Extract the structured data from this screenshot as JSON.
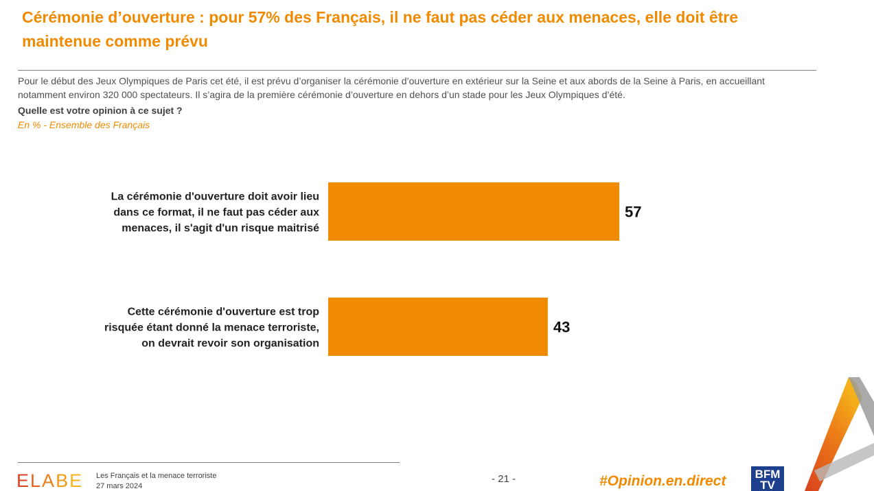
{
  "header": {
    "title": "Cérémonie d’ouverture : pour 57% des Français, il ne faut pas céder aux menaces, elle doit être maintenue comme prévu",
    "intro": "Pour le début des Jeux Olympiques de Paris cet été, il est prévu d’organiser la cérémonie d’ouverture en extérieur sur la Seine et aux abords de la Seine à Paris, en accueillant notamment environ 320 000 spectateurs. Il s’agira de la première cérémonie d’ouverture en dehors d’un stade pour les Jeux Olympiques d’été.",
    "question": "Quelle est votre opinion à ce sujet ?",
    "base": "En % - Ensemble des Français"
  },
  "chart_data": {
    "type": "bar",
    "orientation": "horizontal",
    "categories": [
      [
        "La cérémonie d'ouverture doit avoir lieu",
        "dans ce format, il ne faut pas céder aux",
        "menaces, il s'agit d'un risque maitrisé"
      ],
      [
        "Cette cérémonie d'ouverture est trop",
        "risquée étant donné la menace terroriste,",
        "on devrait revoir son organisation"
      ]
    ],
    "values": [
      57,
      43
    ],
    "value_labels": [
      "57",
      "43"
    ],
    "color": "#f08a00",
    "title": "",
    "xlabel": "",
    "ylabel": ""
  },
  "footer": {
    "logo_letters": [
      "E",
      "L",
      "A",
      "B",
      "E"
    ],
    "logo_colors": [
      "#d9411e",
      "#e35f1d",
      "#ec7d18",
      "#f29a16",
      "#f5b21a"
    ],
    "line1": "Les Français et la menace terroriste",
    "line2": "27 mars 2024",
    "page": "- 21 -",
    "hashtag": "#Opinion.en.direct",
    "channel_line1": "BFM",
    "channel_line2": "TV"
  },
  "colors": {
    "accent": "#f08a00",
    "text": "#404040",
    "channel_bg": "#1e3e8e"
  },
  "icons": {
    "corner_decoration": "orange-triangle-a-mark"
  }
}
